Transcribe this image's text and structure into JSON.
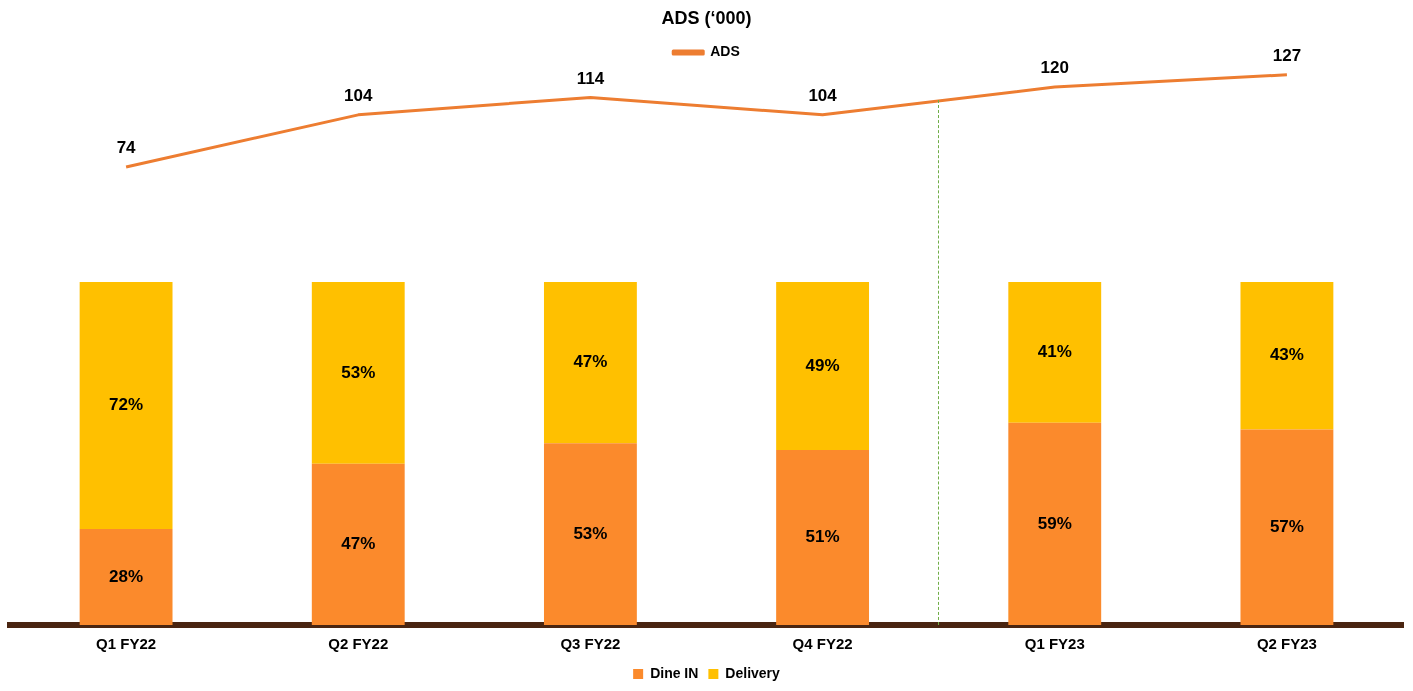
{
  "chart_data": [
    {
      "type": "line",
      "title": "ADS (‘000)",
      "legend": "top",
      "tick_labels": false,
      "grid": false,
      "data_labels": true,
      "marker": "none",
      "categories": [
        null,
        null,
        null,
        null,
        null,
        null
      ],
      "series": [
        {
          "name": "ADS",
          "color": "#ed7d31",
          "values": [
            74,
            104,
            114,
            104,
            120,
            127
          ]
        }
      ]
    },
    {
      "type": "bar",
      "stacked": true,
      "legend": "bottom",
      "tick_labels": "x",
      "grid": false,
      "categories": [
        "Q1 FY22",
        "Q2 FY22",
        "Q3 FY22",
        "Q4 FY22",
        "Q1 FY23",
        "Q2 FY23"
      ],
      "series": [
        {
          "name": "Dine IN",
          "color": "#fb8a2c",
          "values": [
            28,
            47,
            53,
            51,
            59,
            57
          ],
          "value_labels": [
            "28%",
            "47%",
            "53%",
            "51%",
            "59%",
            "57%"
          ]
        },
        {
          "name": "Delivery",
          "color": "#ffc000",
          "values": [
            72,
            53,
            47,
            49,
            41,
            43
          ],
          "value_labels": [
            "72%",
            "53%",
            "47%",
            "49%",
            "41%",
            "43%"
          ]
        }
      ]
    }
  ]
}
